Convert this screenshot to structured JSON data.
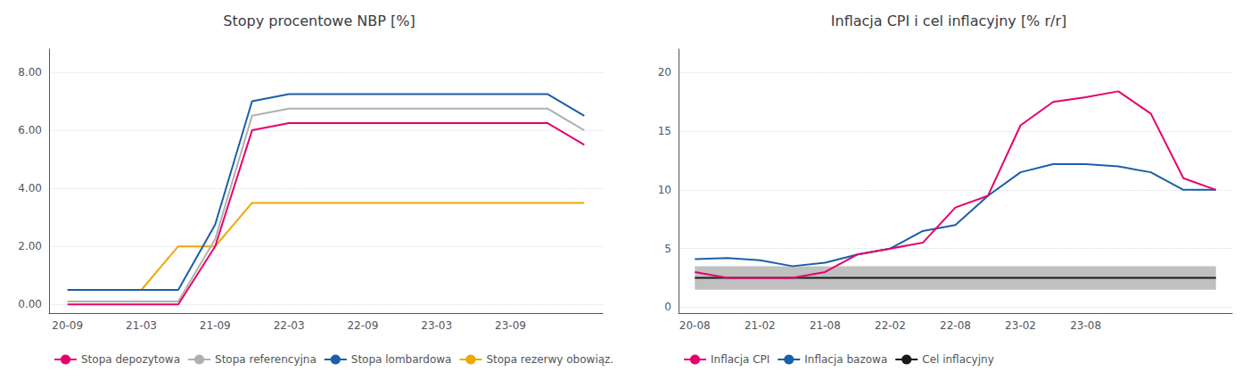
{
  "chart_data": [
    {
      "type": "line",
      "title": "Stopy procentowe NBP [%]",
      "categories": [
        "20-09",
        null,
        "21-03",
        null,
        "21-09",
        null,
        "22-03",
        null,
        "22-09",
        null,
        "23-03",
        null,
        "23-09",
        null,
        null
      ],
      "series": [
        {
          "name": "Stopa depozytowa",
          "color": "#e6006e",
          "values": [
            0.0,
            0.0,
            0.0,
            0.0,
            2.0,
            6.0,
            6.25,
            6.25,
            6.25,
            6.25,
            6.25,
            6.25,
            6.25,
            6.25,
            5.5
          ]
        },
        {
          "name": "Stopa referencyjna",
          "color": "#b0b0b0",
          "values": [
            0.1,
            0.1,
            0.1,
            0.1,
            2.25,
            6.5,
            6.75,
            6.75,
            6.75,
            6.75,
            6.75,
            6.75,
            6.75,
            6.75,
            6.0
          ]
        },
        {
          "name": "Stopa lombardowa",
          "color": "#1a5fa8",
          "values": [
            0.5,
            0.5,
            0.5,
            0.5,
            2.75,
            7.0,
            7.25,
            7.25,
            7.25,
            7.25,
            7.25,
            7.25,
            7.25,
            7.25,
            6.5
          ]
        },
        {
          "name": "Stopa rezerwy obowiąz.",
          "color": "#f0a800",
          "values": [
            0.5,
            0.5,
            0.5,
            2.0,
            2.0,
            3.5,
            3.5,
            3.5,
            3.5,
            3.5,
            3.5,
            3.5,
            3.5,
            3.5,
            3.5
          ]
        }
      ],
      "ylim": [
        -0.3,
        8.8
      ],
      "yticks": [
        {
          "value": 0.0,
          "label": "0.00"
        },
        {
          "value": 2.0,
          "label": "2.00"
        },
        {
          "value": 4.0,
          "label": "4.00"
        },
        {
          "value": 6.0,
          "label": "6.00"
        },
        {
          "value": 8.0,
          "label": "8.00"
        }
      ],
      "grid": true,
      "legend": "bottom"
    },
    {
      "type": "line",
      "title": "Inflacja CPI i cel inflacyjny [% r/r]",
      "categories": [
        "20-08",
        null,
        "21-02",
        null,
        "21-08",
        null,
        "22-02",
        null,
        "22-08",
        null,
        "23-02",
        null,
        "23-08",
        null,
        null,
        null,
        null
      ],
      "series": [
        {
          "name": "Inflacja CPI",
          "color": "#e6006e",
          "values": [
            3.0,
            2.5,
            2.5,
            2.5,
            3.0,
            4.5,
            5.0,
            5.5,
            8.5,
            9.5,
            15.5,
            17.5,
            17.9,
            18.4,
            16.5,
            11.0,
            10.0
          ]
        },
        {
          "name": "Inflacja bazowa",
          "color": "#1a5fa8",
          "values": [
            4.1,
            4.2,
            4.0,
            3.5,
            3.8,
            4.5,
            5.0,
            6.5,
            7.0,
            9.5,
            11.5,
            12.2,
            12.2,
            12.0,
            11.5,
            10.0,
            10.0
          ]
        },
        {
          "name": "Cel inflacyjny",
          "color": "#1a1a1a",
          "values": [
            2.5,
            2.5,
            2.5,
            2.5,
            2.5,
            2.5,
            2.5,
            2.5,
            2.5,
            2.5,
            2.5,
            2.5,
            2.5,
            2.5,
            2.5,
            2.5,
            2.5
          ]
        },
        {
          "type": "band",
          "color": "#c0c0c0",
          "lower": [
            1.5,
            1.5,
            1.5,
            1.5,
            1.5,
            1.5,
            1.5,
            1.5,
            1.5,
            1.5,
            1.5,
            1.5,
            1.5,
            1.5,
            1.5,
            1.5,
            1.5
          ],
          "upper": [
            3.5,
            3.5,
            3.5,
            3.5,
            3.5,
            3.5,
            3.5,
            3.5,
            3.5,
            3.5,
            3.5,
            3.5,
            3.5,
            3.5,
            3.5,
            3.5,
            3.5
          ]
        }
      ],
      "ylim": [
        -0.5,
        22
      ],
      "yticks": [
        0,
        5,
        10,
        15,
        20
      ],
      "grid": true,
      "legend": "bottom"
    }
  ]
}
